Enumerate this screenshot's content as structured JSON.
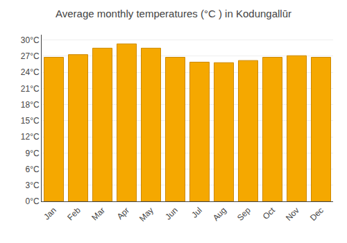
{
  "chart_data": {
    "type": "bar",
    "title": "Average monthly temperatures (°C ) in Kodungallūr",
    "categories": [
      "Jan",
      "Feb",
      "Mar",
      "Apr",
      "May",
      "Jun",
      "Jul",
      "Aug",
      "Sep",
      "Oct",
      "Nov",
      "Dec"
    ],
    "values": [
      26.8,
      27.3,
      28.5,
      29.3,
      28.5,
      26.8,
      25.9,
      25.8,
      26.2,
      26.8,
      27.1,
      26.8
    ],
    "color": "#F5A800",
    "ylim": [
      0,
      31
    ],
    "yticks": [
      {
        "value": 0,
        "label": "0°C"
      },
      {
        "value": 3,
        "label": "3°C"
      },
      {
        "value": 6,
        "label": "6°C"
      },
      {
        "value": 9,
        "label": "9°C"
      },
      {
        "value": 12,
        "label": "12°C"
      },
      {
        "value": 15,
        "label": "15°C"
      },
      {
        "value": 18,
        "label": "18°C"
      },
      {
        "value": 21,
        "label": "21°C"
      },
      {
        "value": 24,
        "label": "24°C"
      },
      {
        "value": 27,
        "label": "27°C"
      },
      {
        "value": 30,
        "label": "30°C"
      }
    ],
    "grid": true
  }
}
